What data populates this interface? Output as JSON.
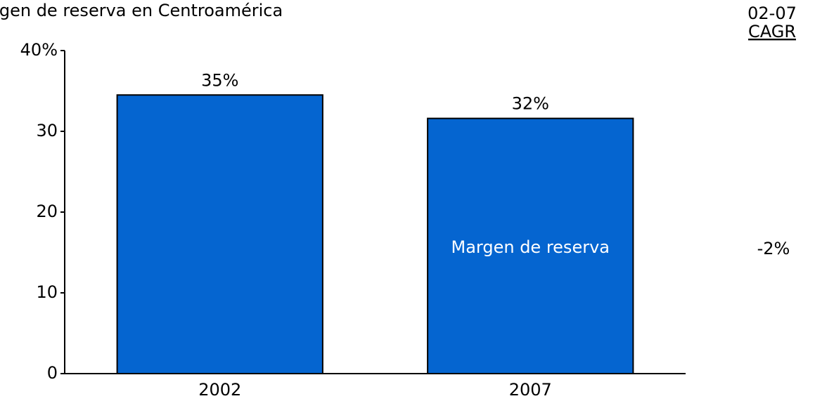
{
  "chart_data": {
    "type": "bar",
    "title": "Margen de reserva en Centroamérica",
    "categories": [
      "2002",
      "2007"
    ],
    "series": [
      {
        "name": "Margen de reserva",
        "color": "#0565d0",
        "values": [
          34.5,
          31.6
        ],
        "value_labels": [
          "35%",
          "32%"
        ]
      }
    ],
    "ylim": [
      0,
      40
    ],
    "yticks": [
      0,
      10,
      20,
      30,
      {
        "value": 40,
        "label": "40%"
      }
    ],
    "grid": false,
    "cagr_header": "02-07",
    "cagr_title": "CAGR",
    "cagr_value": "-2%"
  }
}
